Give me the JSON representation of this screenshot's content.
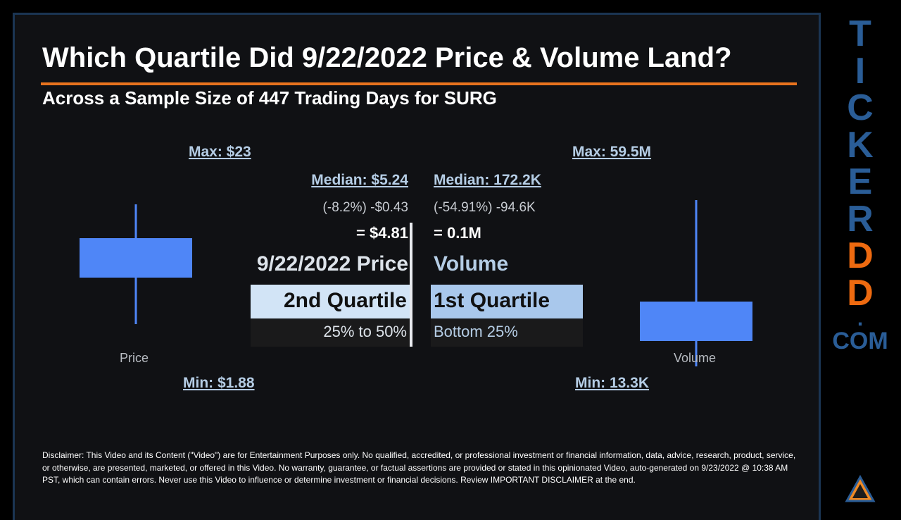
{
  "title": "Which Quartile Did 9/22/2022 Price & Volume Land?",
  "subtitle": "Across a Sample Size of 447 Trading Days for SURG",
  "price": {
    "max_label": "Max: $23",
    "median_label": "Median: $5.24",
    "change_label": "(-8.2%) -$0.43",
    "result_label": "= $4.81",
    "date_label": "9/22/2022 Price",
    "quartile_label": "2nd Quartile",
    "range_label": "25% to 50%",
    "axis_caption": "Price",
    "min_label": "Min: $1.88"
  },
  "volume": {
    "max_label": "Max: 59.5M",
    "median_label": "Median: 172.2K",
    "change_label": "(-54.91%) -94.6K",
    "result_label": "= 0.1M",
    "name_label": "Volume",
    "quartile_label": "1st Quartile",
    "range_label": "Bottom 25%",
    "axis_caption": "Volume",
    "min_label": "Min: 13.3K"
  },
  "chart_data": [
    {
      "type": "box",
      "categories": [
        "Price"
      ],
      "series": [
        {
          "values": [
            1.88,
            3.4,
            5.24,
            9.0,
            23.0
          ]
        }
      ],
      "xlabel": "Price",
      "annotations": [
        "Max: $23",
        "Median: $5.24",
        "Min: $1.88"
      ],
      "color": "#4f86f7"
    },
    {
      "type": "box",
      "categories": [
        "Volume"
      ],
      "series": [
        {
          "values": [
            13300,
            95000,
            172200,
            460000,
            59500000
          ]
        }
      ],
      "xlabel": "Volume",
      "annotations": [
        "Max: 59.5M",
        "Median: 172.2K",
        "Min: 13.3K"
      ],
      "color": "#4f86f7"
    }
  ],
  "disclaimer": "Disclaimer: This Video and its Content (\"Video\") are for Entertainment Purposes only. No qualified, accredited, or professional investment or financial information, data, advice, research, product, service, or otherwise, are presented, marketed, or offered in this Video. No warranty, guarantee, or factual assertions are provided or stated in this opinionated Video, auto-generated on 9/23/2022 @ 10:38 AM PST, which can contain errors. Never use this Video to influence or determine investment or financial decisions. Review IMPORTANT DISCLAIMER at the end.",
  "brand": {
    "letters": [
      "T",
      "I",
      "C",
      "K",
      "E",
      "R",
      "D",
      "D"
    ],
    "letter_colors": [
      "#2a5d97",
      "#2a5d97",
      "#2a5d97",
      "#2a5d97",
      "#2a5d97",
      "#2a5d97",
      "#ee6a10",
      "#ee6a10"
    ],
    "dot": ".",
    "suffix": "COM",
    "logo_icon": "triangle-logo-icon"
  },
  "colors": {
    "accent": "#e8731e",
    "box_fill": "#4f86f7",
    "price_highlight": "#d2e4f6",
    "volume_highlight": "#a9c8ec",
    "link_text": "#b5cde5"
  }
}
